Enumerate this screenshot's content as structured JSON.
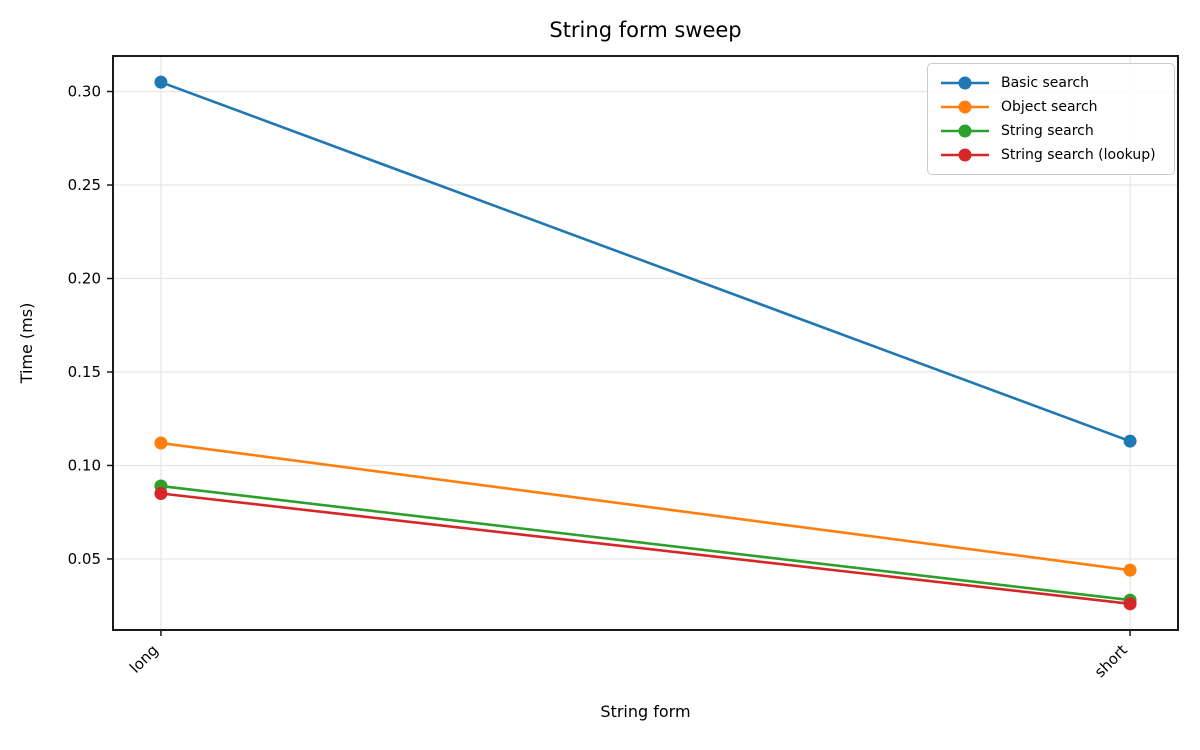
{
  "chart_data": {
    "type": "line",
    "title": "String form sweep",
    "xlabel": "String form",
    "ylabel": "Time (ms)",
    "categories": [
      "long",
      "short"
    ],
    "series": [
      {
        "name": "Basic search",
        "color": "#1f77b4",
        "values": [
          0.305,
          0.113
        ]
      },
      {
        "name": "Object search",
        "color": "#ff7f0e",
        "values": [
          0.112,
          0.044
        ]
      },
      {
        "name": "String search",
        "color": "#2ca02c",
        "values": [
          0.089,
          0.028
        ]
      },
      {
        "name": "String search (lookup)",
        "color": "#d62728",
        "values": [
          0.085,
          0.026
        ]
      }
    ],
    "yticks": [
      0.05,
      0.1,
      0.15,
      0.2,
      0.25,
      0.3
    ],
    "ylim": [
      0.012,
      0.319
    ],
    "grid": true,
    "legend_position": "upper right",
    "x_tick_rotation": 45,
    "axis_color": "#1a1a1a",
    "grid_color": "#e6e6e6",
    "marker": "circle",
    "line_width": 2.6,
    "marker_radius": 6.5
  }
}
